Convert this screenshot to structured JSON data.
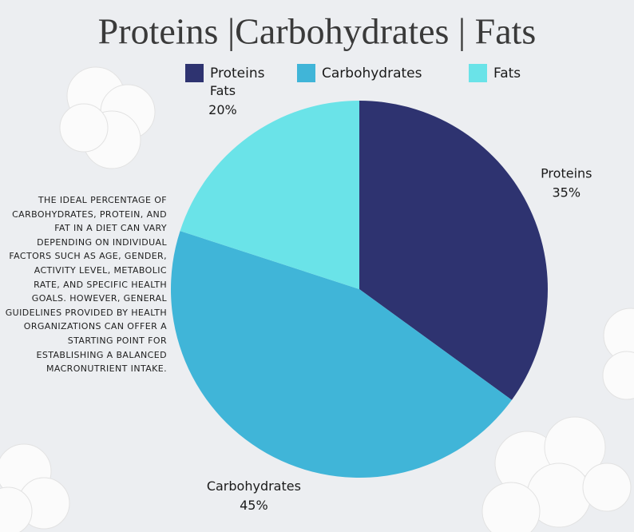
{
  "chart_data": {
    "type": "pie",
    "title": "Proteins |Carbohydrates | Fats",
    "categories": [
      "Proteins",
      "Carbohydrates",
      "Fats"
    ],
    "values": [
      35,
      45,
      20
    ],
    "value_labels": [
      "35%",
      "45%",
      "20%"
    ],
    "colors": [
      "#2e3370",
      "#40b5d8",
      "#6ae3e8"
    ],
    "legend": "top",
    "annotation": "THE IDEAL PERCENTAGE OF CARBOHYDRATES, PROTEIN, AND FAT IN A DIET CAN VARY DEPENDING ON INDIVIDUAL FACTORS SUCH AS AGE, GENDER, ACTIVITY LEVEL, METABOLIC RATE, AND SPECIFIC HEALTH GOALS. HOWEVER, GENERAL GUIDELINES PROVIDED BY HEALTH ORGANIZATIONS CAN OFFER A STARTING POINT FOR ESTABLISHING A BALANCED MACRONUTRIENT INTAKE."
  }
}
